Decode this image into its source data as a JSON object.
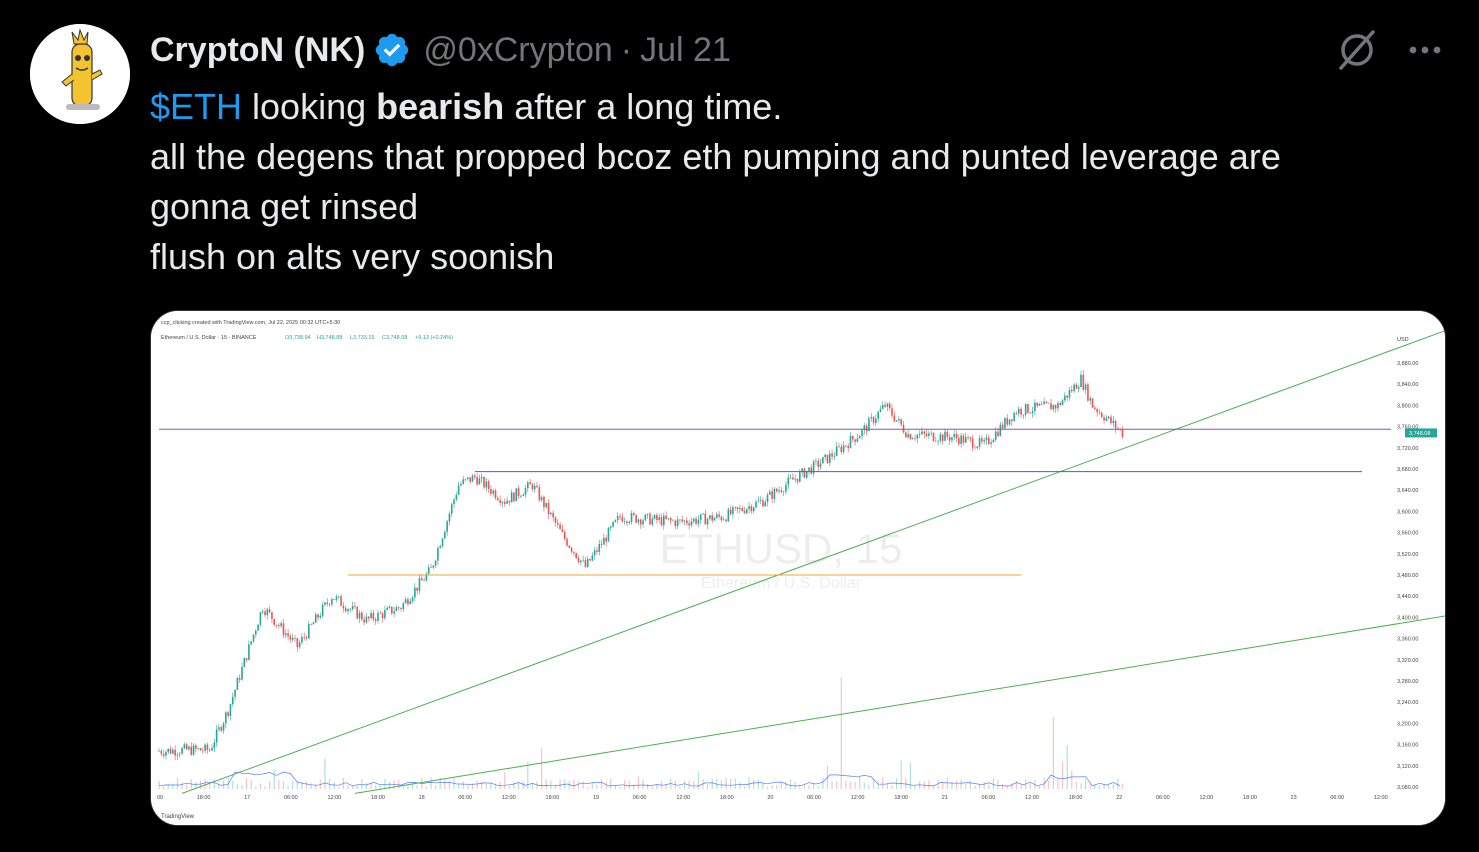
{
  "tweet": {
    "author_name": "CryptoN (NK)",
    "handle": "@0xCrypton",
    "separator": "·",
    "date": "Jul 21",
    "text": {
      "cashtag": "$ETH",
      "part1": " looking ",
      "bold": "bearish",
      "part2": " after a long time.",
      "line2": "all the degens that propped bcoz eth pumping and punted leverage are",
      "line3": "gonna get rinsed",
      "line4": "flush on alts very soonish"
    }
  },
  "icons": {
    "avatar": "avatar-illustration",
    "verified": "verified-badge-icon",
    "grok": "grok-icon",
    "more": "more-icon"
  },
  "colors": {
    "background": "#000000",
    "text": "#e7e9ea",
    "muted": "#71767b",
    "accent": "#1d9bf0",
    "candle_up": "#26a69a",
    "candle_down": "#ef5350",
    "trend_line": "#4caf50",
    "resistance_line": "#7e57c2",
    "support_line": "#2962ff",
    "orange_line": "#f5a623"
  },
  "chart_data": {
    "type": "candlestick",
    "header_line1": "ccp_clicking created with TradingView.com, Jul 22, 2025 00:32 UTC+5:30",
    "header_line2": "Ethereum / U.S. Dollar · 15 · BINANCE",
    "ohlc": {
      "open": "O3,738.94",
      "high": "H3,748.88",
      "low": "L3,733.19",
      "close": "C3,748.08",
      "change": "+9.13 (+0.24%)"
    },
    "watermark": "ETHUSD, 15",
    "watermark_sub": "Ethereum / U.S. Dollar",
    "currency": "USD",
    "current_price_label": "3,748.08",
    "current_price": 3748.08,
    "y_ticks": [
      "3,880.00",
      "3,840.00",
      "3,800.00",
      "3,760.00",
      "3,720.00",
      "3,680.00",
      "3,640.00",
      "3,600.00",
      "3,560.00",
      "3,520.00",
      "3,480.00",
      "3,440.00",
      "3,400.00",
      "3,360.00",
      "3,320.00",
      "3,280.00",
      "3,240.00",
      "3,200.00",
      "3,160.00",
      "3,120.00",
      "3,080.00"
    ],
    "x_ticks": [
      "00",
      "18:00",
      "17",
      "06:00",
      "12:00",
      "18:00",
      "18",
      "06:00",
      "12:00",
      "18:00",
      "19",
      "06:00",
      "12:00",
      "18:00",
      "20",
      "06:00",
      "12:00",
      "18:00",
      "21",
      "06:00",
      "12:00",
      "18:00",
      "22",
      "06:00",
      "12:00",
      "18:00",
      "23",
      "06:00",
      "12:00"
    ],
    "price_anchors": [
      {
        "i": 0,
        "p": 3148
      },
      {
        "i": 12,
        "p": 3150
      },
      {
        "i": 22,
        "p": 3150
      },
      {
        "i": 30,
        "p": 3225
      },
      {
        "i": 45,
        "p": 3420
      },
      {
        "i": 60,
        "p": 3345
      },
      {
        "i": 75,
        "p": 3440
      },
      {
        "i": 90,
        "p": 3395
      },
      {
        "i": 105,
        "p": 3420
      },
      {
        "i": 118,
        "p": 3490
      },
      {
        "i": 130,
        "p": 3650
      },
      {
        "i": 137,
        "p": 3665
      },
      {
        "i": 150,
        "p": 3620
      },
      {
        "i": 162,
        "p": 3650
      },
      {
        "i": 175,
        "p": 3555
      },
      {
        "i": 185,
        "p": 3495
      },
      {
        "i": 200,
        "p": 3590
      },
      {
        "i": 225,
        "p": 3580
      },
      {
        "i": 245,
        "p": 3590
      },
      {
        "i": 262,
        "p": 3620
      },
      {
        "i": 275,
        "p": 3660
      },
      {
        "i": 290,
        "p": 3700
      },
      {
        "i": 305,
        "p": 3750
      },
      {
        "i": 315,
        "p": 3800
      },
      {
        "i": 325,
        "p": 3745
      },
      {
        "i": 345,
        "p": 3740
      },
      {
        "i": 358,
        "p": 3725
      },
      {
        "i": 372,
        "p": 3790
      },
      {
        "i": 390,
        "p": 3800
      },
      {
        "i": 400,
        "p": 3850
      },
      {
        "i": 405,
        "p": 3800
      },
      {
        "i": 418,
        "p": 3748
      }
    ],
    "candle_count": 419,
    "trend_lines": [
      {
        "from": {
          "x_index": 10,
          "price": 3068
        },
        "to": {
          "x_index": 590,
          "price": 3992
        },
        "color": "trend_line"
      },
      {
        "from": {
          "x_index": 85,
          "price": 3068
        },
        "to": {
          "x_index": 608,
          "price": 3438
        },
        "color": "trend_line"
      }
    ],
    "horizontal_levels": [
      {
        "price": 3755,
        "color": "resistance_line",
        "full_width": true
      },
      {
        "price": 3675,
        "color": "support_line",
        "from_index": 137
      },
      {
        "price": 3480,
        "color": "orange_line",
        "from_index": 82,
        "to_index": 374
      }
    ],
    "footer": "TradingView"
  }
}
